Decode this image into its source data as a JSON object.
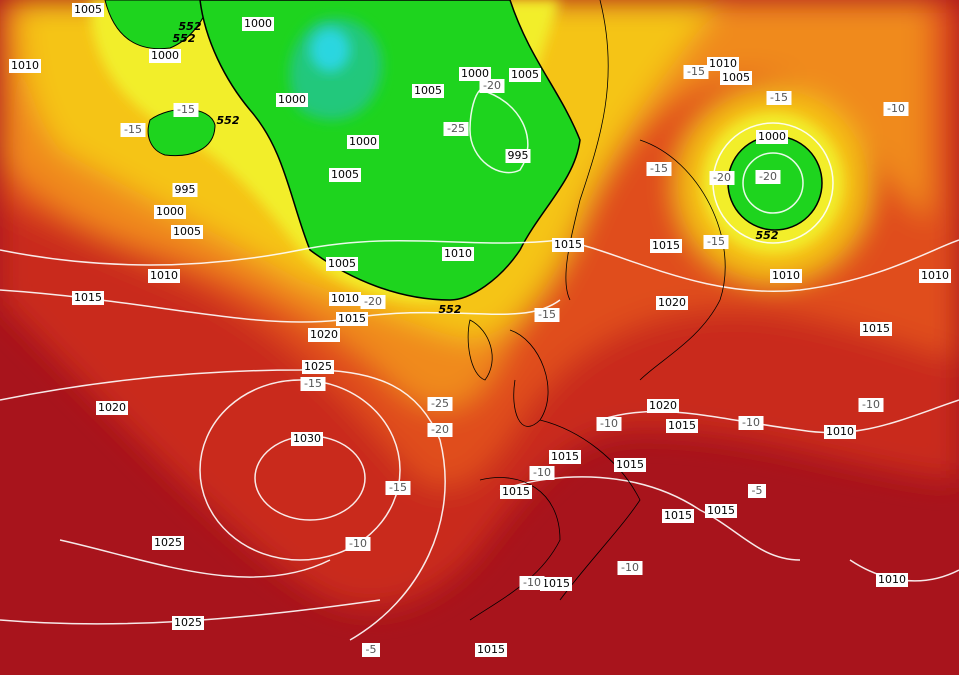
{
  "pressure_labels": [
    "1005",
    "1000",
    "1010",
    "1000",
    "1000",
    "1005",
    "1000",
    "1005",
    "1010",
    "1005",
    "1000",
    "995",
    "1000",
    "1005",
    "995",
    "1000",
    "1005",
    "1015",
    "1015",
    "1010",
    "1005",
    "1010",
    "1010",
    "1010",
    "1015",
    "1010",
    "1020",
    "1015",
    "1020",
    "1015",
    "1025",
    "1020",
    "1020",
    "1015",
    "1010",
    "1030",
    "1015",
    "1015",
    "1015",
    "1015",
    "1015",
    "1025",
    "1015",
    "1010",
    "1025",
    "1015"
  ],
  "temperature_labels": [
    "-15",
    "-15",
    "-20",
    "-25",
    "-15",
    "-10",
    "-15",
    "-15",
    "-20",
    "-20",
    "-15",
    "-20",
    "-15",
    "-15",
    "-25",
    "-20",
    "-10",
    "-10",
    "-10",
    "-10",
    "-15",
    "-5",
    "-10",
    "-10",
    "-10",
    "-5"
  ],
  "thickness_labels": [
    "552",
    "552",
    "552",
    "552",
    "552"
  ]
}
